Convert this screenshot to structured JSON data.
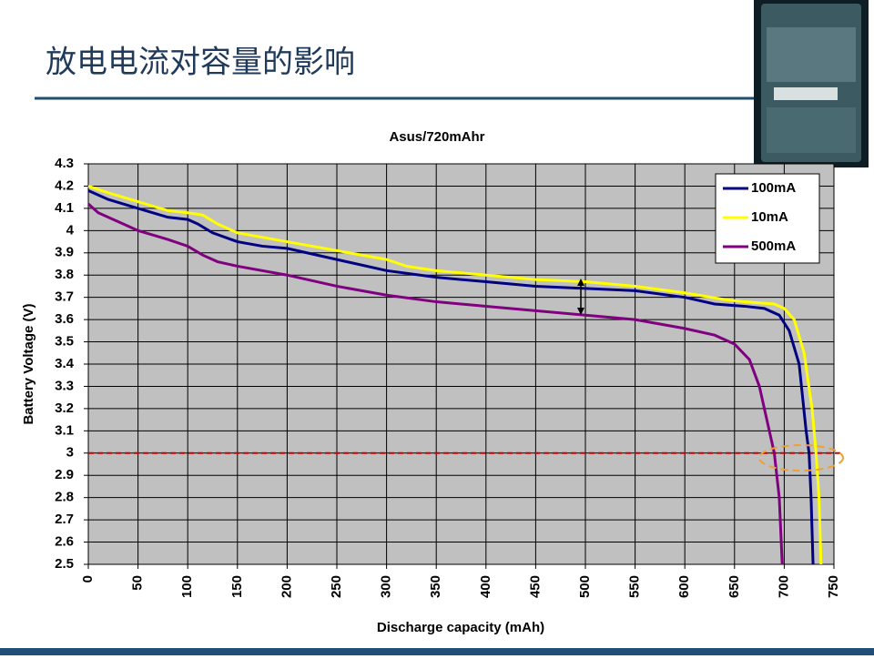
{
  "slide_title": "放电电流对容量的影响",
  "chart_data": {
    "type": "line",
    "title": "Asus/720mAhr",
    "xlabel": "Discharge capacity (mAh)",
    "ylabel": "Battery Voltage (V)",
    "xlim": [
      0,
      750
    ],
    "xticks": [
      0,
      50,
      100,
      150,
      200,
      250,
      300,
      350,
      400,
      450,
      500,
      550,
      600,
      650,
      700,
      750
    ],
    "ylim": [
      2.5,
      4.3
    ],
    "yticks": [
      2.5,
      2.6,
      2.7,
      2.8,
      2.9,
      3,
      3.1,
      3.2,
      3.3,
      3.4,
      3.5,
      3.6,
      3.7,
      3.8,
      3.9,
      4,
      4.1,
      4.2,
      4.3
    ],
    "grid": true,
    "legend": "upper right",
    "reference_line": {
      "value": 3,
      "color": "#cc0000"
    },
    "series": [
      {
        "name": "100mA",
        "color": "#000080",
        "x": [
          0,
          20,
          50,
          80,
          100,
          110,
          125,
          150,
          175,
          200,
          250,
          300,
          350,
          400,
          450,
          500,
          550,
          600,
          630,
          660,
          680,
          695,
          705,
          715,
          722,
          725,
          727,
          729
        ],
        "values": [
          4.18,
          4.14,
          4.1,
          4.06,
          4.05,
          4.03,
          3.99,
          3.95,
          3.93,
          3.92,
          3.87,
          3.82,
          3.79,
          3.77,
          3.75,
          3.74,
          3.73,
          3.7,
          3.67,
          3.66,
          3.65,
          3.62,
          3.55,
          3.4,
          3.1,
          3.0,
          2.8,
          2.5
        ]
      },
      {
        "name": "10mA",
        "color": "#ffff00",
        "x": [
          0,
          20,
          50,
          80,
          100,
          115,
          130,
          150,
          175,
          200,
          250,
          300,
          320,
          350,
          400,
          450,
          500,
          550,
          600,
          640,
          660,
          690,
          700,
          710,
          720,
          728,
          732,
          735,
          737
        ],
        "values": [
          4.2,
          4.17,
          4.13,
          4.09,
          4.08,
          4.07,
          4.03,
          3.99,
          3.97,
          3.95,
          3.91,
          3.87,
          3.84,
          3.82,
          3.8,
          3.78,
          3.77,
          3.75,
          3.72,
          3.69,
          3.68,
          3.67,
          3.65,
          3.6,
          3.45,
          3.2,
          3.0,
          2.8,
          2.5
        ]
      },
      {
        "name": "500mA",
        "color": "#800080",
        "x": [
          0,
          10,
          30,
          50,
          80,
          100,
          115,
          130,
          150,
          200,
          250,
          300,
          350,
          400,
          450,
          500,
          550,
          600,
          630,
          650,
          665,
          675,
          685,
          690,
          695,
          698
        ],
        "values": [
          4.12,
          4.08,
          4.04,
          4.0,
          3.96,
          3.93,
          3.89,
          3.86,
          3.84,
          3.8,
          3.75,
          3.71,
          3.68,
          3.66,
          3.64,
          3.62,
          3.6,
          3.56,
          3.53,
          3.49,
          3.42,
          3.3,
          3.1,
          3.0,
          2.8,
          2.5
        ]
      }
    ]
  }
}
